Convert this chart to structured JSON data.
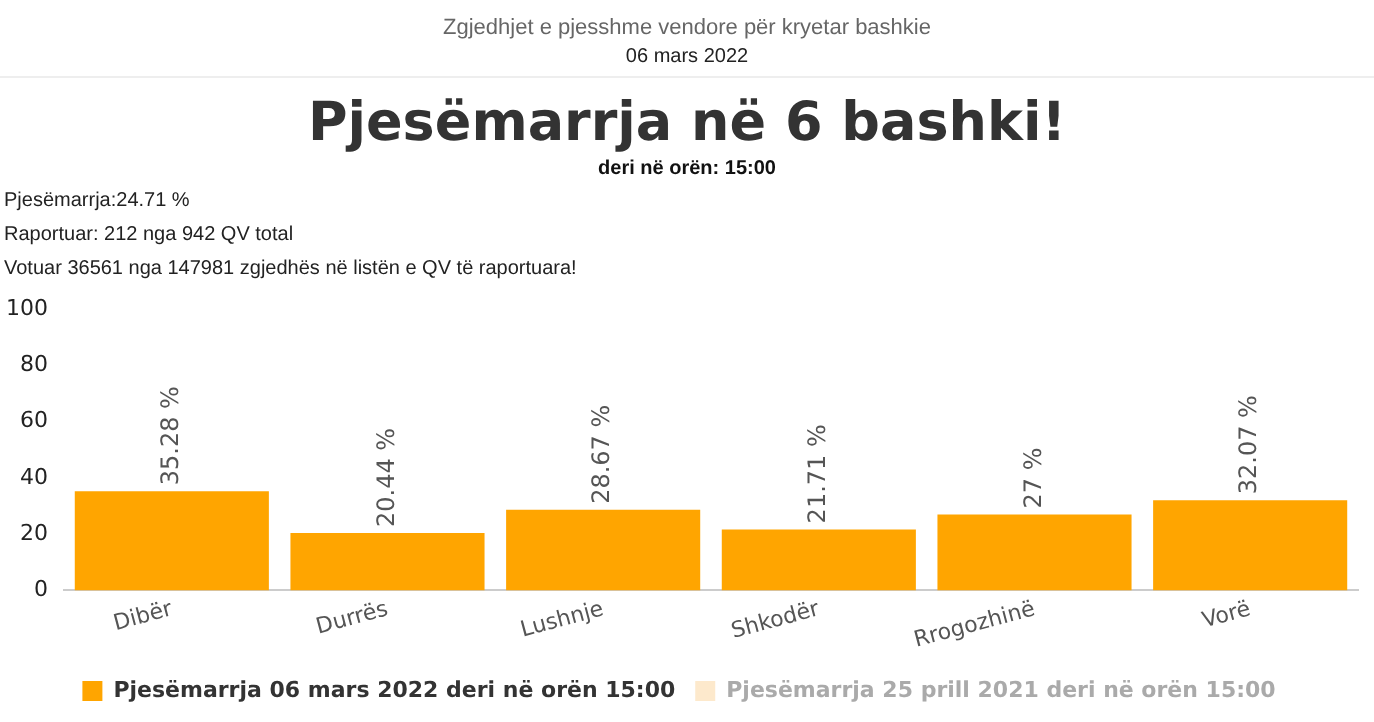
{
  "chart_data": {
    "type": "bar",
    "title": "Pjesëmarrja në 6 bashki!",
    "subtitle": "deri në orën: 15:00",
    "annotations": [
      "Zgjedhjet e pjesshme vendore për kryetar bashkie",
      "06 mars 2022",
      "Pjesëmarrja:24.71 %",
      "Raportuar: 212 nga 942 QV total",
      "Votuar 36561 nga 147981 zgjedhës në listën e QV të raportuara!"
    ],
    "categories": [
      "Dibër",
      "Durrës",
      "Lushnje",
      "Shkodër",
      "Rrogozhinë",
      "Vorë"
    ],
    "series": [
      {
        "name": "Pjesëmarrja 06 mars 2022 deri në orën 15:00",
        "color": "#ffa500",
        "values": [
          35.28,
          20.44,
          28.67,
          21.71,
          27,
          32.07
        ],
        "value_labels": [
          "35.28 %",
          "20.44 %",
          "28.67 %",
          "21.71 %",
          "27 %",
          "32.07 %"
        ]
      },
      {
        "name": "Pjesëmarrja 25 prill 2021 deri në orën 15:00",
        "color": "#fde9cc",
        "values": [
          null,
          null,
          null,
          null,
          null,
          null
        ]
      }
    ],
    "ylim": [
      0,
      100
    ],
    "yticks": [
      0,
      20,
      40,
      60,
      80,
      100
    ],
    "grid": false,
    "legend": "bottom"
  }
}
